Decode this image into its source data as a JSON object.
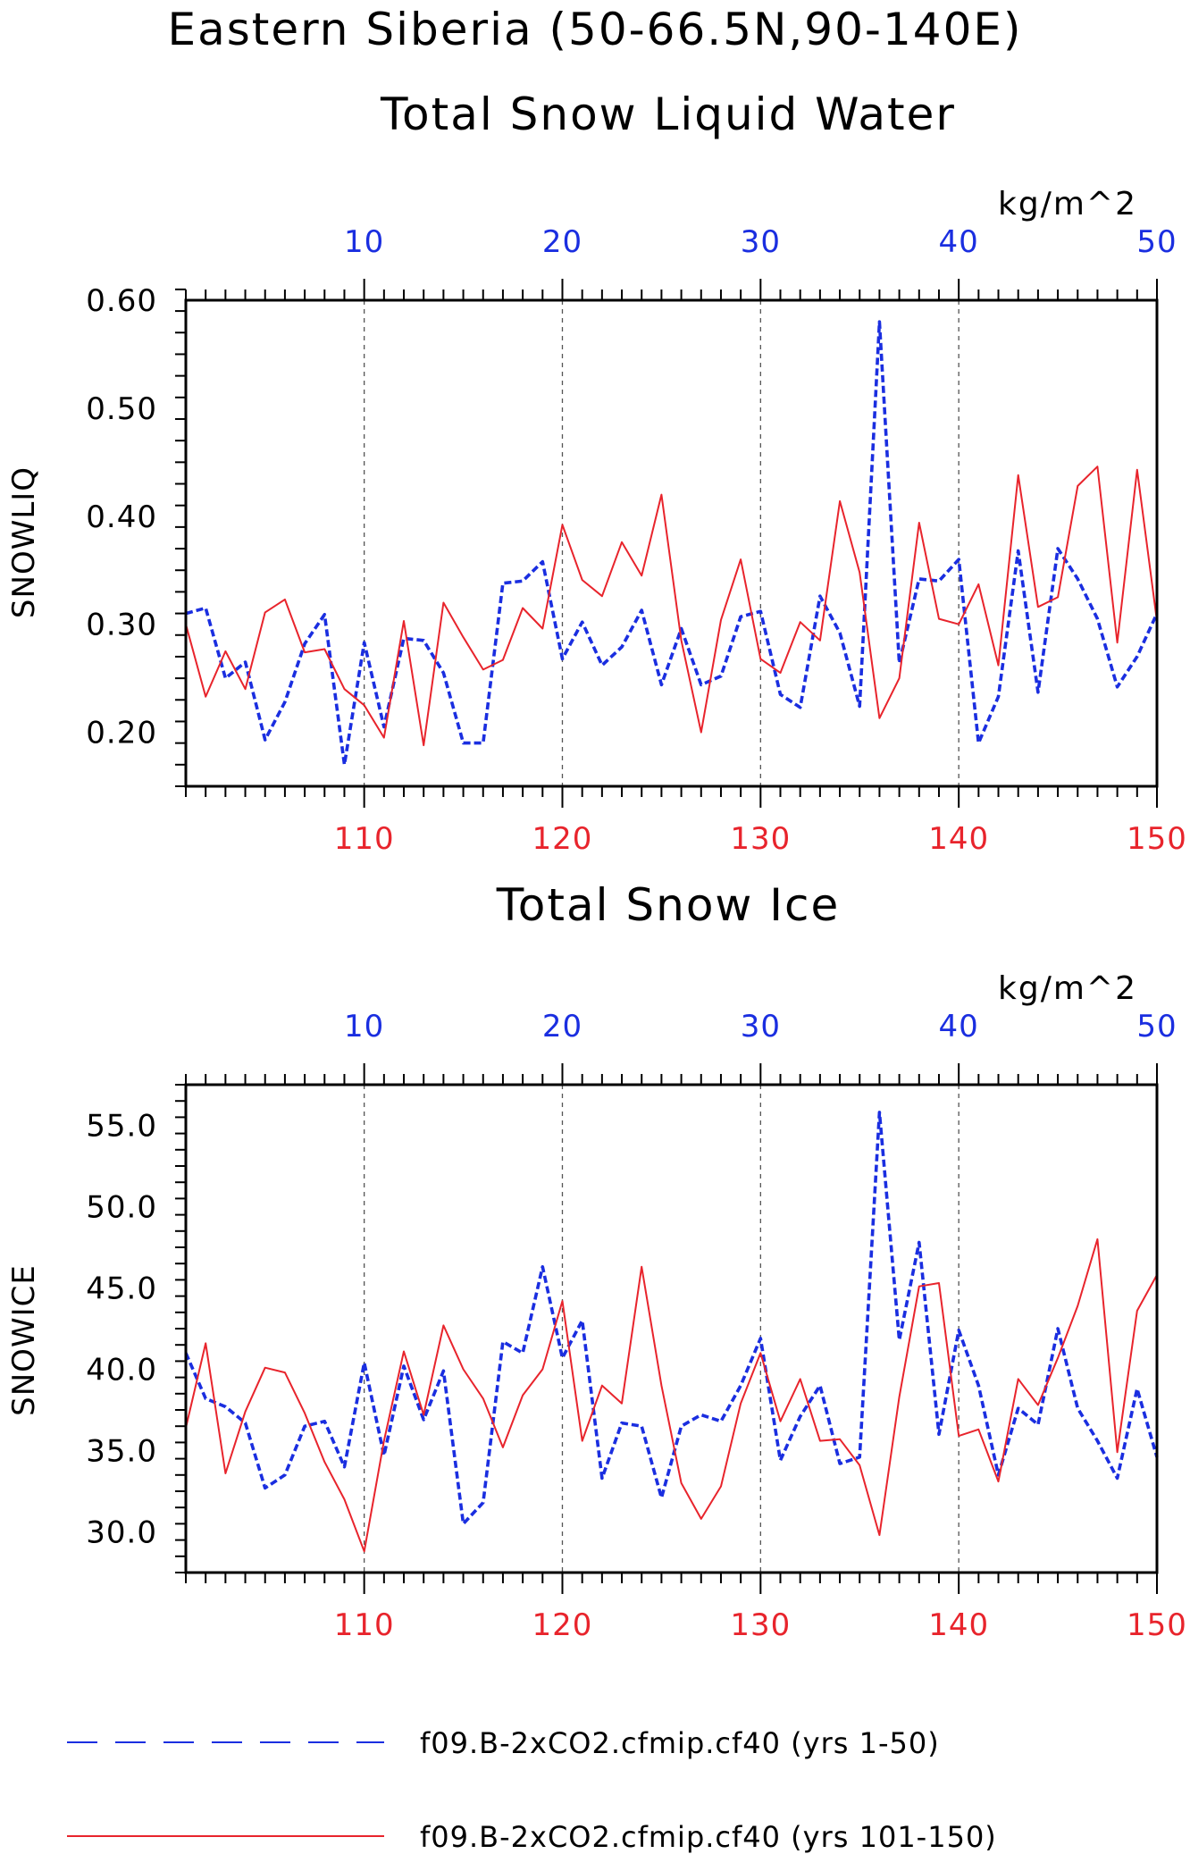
{
  "title": "Eastern Siberia (50-66.5N,90-140E)",
  "colors": {
    "red": "#e8242c",
    "blue": "#1a2ee0",
    "black": "#000000"
  },
  "legend": [
    {
      "label": "f09.B-2xCO2.cfmip.cf40 (yrs 1-50)",
      "color": "#1a2ee0",
      "dash": "dashed"
    },
    {
      "label": "f09.B-2xCO2.cfmip.cf40 (yrs 101-150)",
      "color": "#e8242c",
      "dash": "solid"
    }
  ],
  "chart_data": [
    {
      "type": "line",
      "title": "Total Snow Liquid Water",
      "ylabel": "SNOWLIQ",
      "units": "kg/m^2",
      "ylim": [
        0.15,
        0.6
      ],
      "yticks": [
        0.2,
        0.3,
        0.4,
        0.5,
        0.6
      ],
      "ytick_labels": [
        "0.20",
        "0.30",
        "0.40",
        "0.50",
        "0.60"
      ],
      "bottom_axis": {
        "range": [
          101,
          150
        ],
        "ticks": [
          110,
          120,
          130,
          140,
          150
        ]
      },
      "top_axis": {
        "range": [
          1,
          50
        ],
        "ticks": [
          10,
          20,
          30,
          40,
          50
        ]
      },
      "grid": "vertical dashed at major ticks",
      "series": [
        {
          "axis": "top",
          "style": "dashed",
          "color": "#1a2ee0",
          "x": [
            1,
            2,
            3,
            4,
            5,
            6,
            7,
            8,
            9,
            10,
            11,
            12,
            13,
            14,
            15,
            16,
            17,
            18,
            19,
            20,
            21,
            22,
            23,
            24,
            25,
            26,
            27,
            28,
            29,
            30,
            31,
            32,
            33,
            34,
            35,
            36,
            37,
            38,
            39,
            40,
            41,
            42,
            43,
            44,
            45,
            46,
            47,
            48,
            49,
            50
          ],
          "values": [
            0.31,
            0.315,
            0.25,
            0.265,
            0.193,
            0.228,
            0.282,
            0.309,
            0.17,
            0.283,
            0.205,
            0.287,
            0.285,
            0.255,
            0.19,
            0.19,
            0.338,
            0.34,
            0.358,
            0.268,
            0.302,
            0.262,
            0.279,
            0.313,
            0.244,
            0.296,
            0.244,
            0.252,
            0.307,
            0.312,
            0.235,
            0.223,
            0.326,
            0.292,
            0.224,
            0.58,
            0.264,
            0.342,
            0.34,
            0.36,
            0.19,
            0.233,
            0.368,
            0.237,
            0.37,
            0.342,
            0.305,
            0.242,
            0.27,
            0.31
          ]
        },
        {
          "axis": "bottom",
          "style": "solid",
          "color": "#e8242c",
          "x": [
            101,
            102,
            103,
            104,
            105,
            106,
            107,
            108,
            109,
            110,
            111,
            112,
            113,
            114,
            115,
            116,
            117,
            118,
            119,
            120,
            121,
            122,
            123,
            124,
            125,
            126,
            127,
            128,
            129,
            130,
            131,
            132,
            133,
            134,
            135,
            136,
            137,
            138,
            139,
            140,
            141,
            142,
            143,
            144,
            145,
            146,
            147,
            148,
            149,
            150
          ],
          "values": [
            0.3,
            0.233,
            0.275,
            0.24,
            0.311,
            0.323,
            0.274,
            0.277,
            0.24,
            0.225,
            0.195,
            0.303,
            0.188,
            0.32,
            0.288,
            0.258,
            0.267,
            0.315,
            0.296,
            0.392,
            0.341,
            0.326,
            0.376,
            0.345,
            0.42,
            0.285,
            0.2,
            0.304,
            0.36,
            0.268,
            0.255,
            0.302,
            0.285,
            0.414,
            0.348,
            0.213,
            0.25,
            0.394,
            0.305,
            0.3,
            0.337,
            0.262,
            0.438,
            0.316,
            0.325,
            0.428,
            0.446,
            0.283,
            0.443,
            0.303
          ]
        }
      ]
    },
    {
      "type": "line",
      "title": "Total Snow Ice",
      "ylabel": "SNOWICE",
      "units": "kg/m^2",
      "ylim": [
        27.5,
        57.5
      ],
      "yticks": [
        30,
        35,
        40,
        45,
        50,
        55
      ],
      "ytick_labels": [
        "30.0",
        "35.0",
        "40.0",
        "45.0",
        "50.0",
        "55.0"
      ],
      "bottom_axis": {
        "range": [
          101,
          150
        ],
        "ticks": [
          110,
          120,
          130,
          140,
          150
        ]
      },
      "top_axis": {
        "range": [
          1,
          50
        ],
        "ticks": [
          10,
          20,
          30,
          40,
          50
        ]
      },
      "grid": "vertical dashed at major ticks",
      "series": [
        {
          "axis": "top",
          "style": "dashed",
          "color": "#1a2ee0",
          "x": [
            1,
            2,
            3,
            4,
            5,
            6,
            7,
            8,
            9,
            10,
            11,
            12,
            13,
            14,
            15,
            16,
            17,
            18,
            19,
            20,
            21,
            22,
            23,
            24,
            25,
            26,
            27,
            28,
            29,
            30,
            31,
            32,
            33,
            34,
            35,
            36,
            37,
            38,
            39,
            40,
            41,
            42,
            43,
            44,
            45,
            46,
            47,
            48,
            49,
            50
          ],
          "values": [
            41.0,
            38.2,
            37.7,
            36.7,
            32.7,
            33.5,
            36.5,
            36.8,
            34.0,
            40.4,
            34.7,
            40.2,
            36.9,
            39.9,
            30.5,
            31.8,
            41.7,
            41.0,
            46.3,
            40.7,
            43.0,
            33.3,
            36.7,
            36.5,
            32.1,
            36.5,
            37.2,
            36.8,
            39.0,
            41.9,
            34.4,
            37.1,
            39.0,
            34.2,
            34.6,
            55.8,
            41.8,
            47.8,
            36.0,
            42.4,
            39.0,
            33.5,
            37.6,
            36.6,
            42.5,
            37.6,
            35.6,
            33.3,
            38.8,
            34.6
          ]
        },
        {
          "axis": "bottom",
          "style": "solid",
          "color": "#e8242c",
          "x": [
            101,
            102,
            103,
            104,
            105,
            106,
            107,
            108,
            109,
            110,
            111,
            112,
            113,
            114,
            115,
            116,
            117,
            118,
            119,
            120,
            121,
            122,
            123,
            124,
            125,
            126,
            127,
            128,
            129,
            130,
            131,
            132,
            133,
            134,
            135,
            136,
            137,
            138,
            139,
            140,
            141,
            142,
            143,
            144,
            145,
            146,
            147,
            148,
            149,
            150
          ],
          "values": [
            36.4,
            41.6,
            33.6,
            37.4,
            40.1,
            39.8,
            37.3,
            34.3,
            32.0,
            28.8,
            35.6,
            41.1,
            37.2,
            42.7,
            40.0,
            38.2,
            35.2,
            38.4,
            40.0,
            44.2,
            35.6,
            39.0,
            37.9,
            46.3,
            39.0,
            33.0,
            30.8,
            32.8,
            37.9,
            41.0,
            36.8,
            39.4,
            35.6,
            35.7,
            34.1,
            29.8,
            38.3,
            45.1,
            45.3,
            35.9,
            36.3,
            33.1,
            39.4,
            37.8,
            40.7,
            43.9,
            48.0,
            34.9,
            43.6,
            45.8
          ]
        }
      ]
    }
  ]
}
